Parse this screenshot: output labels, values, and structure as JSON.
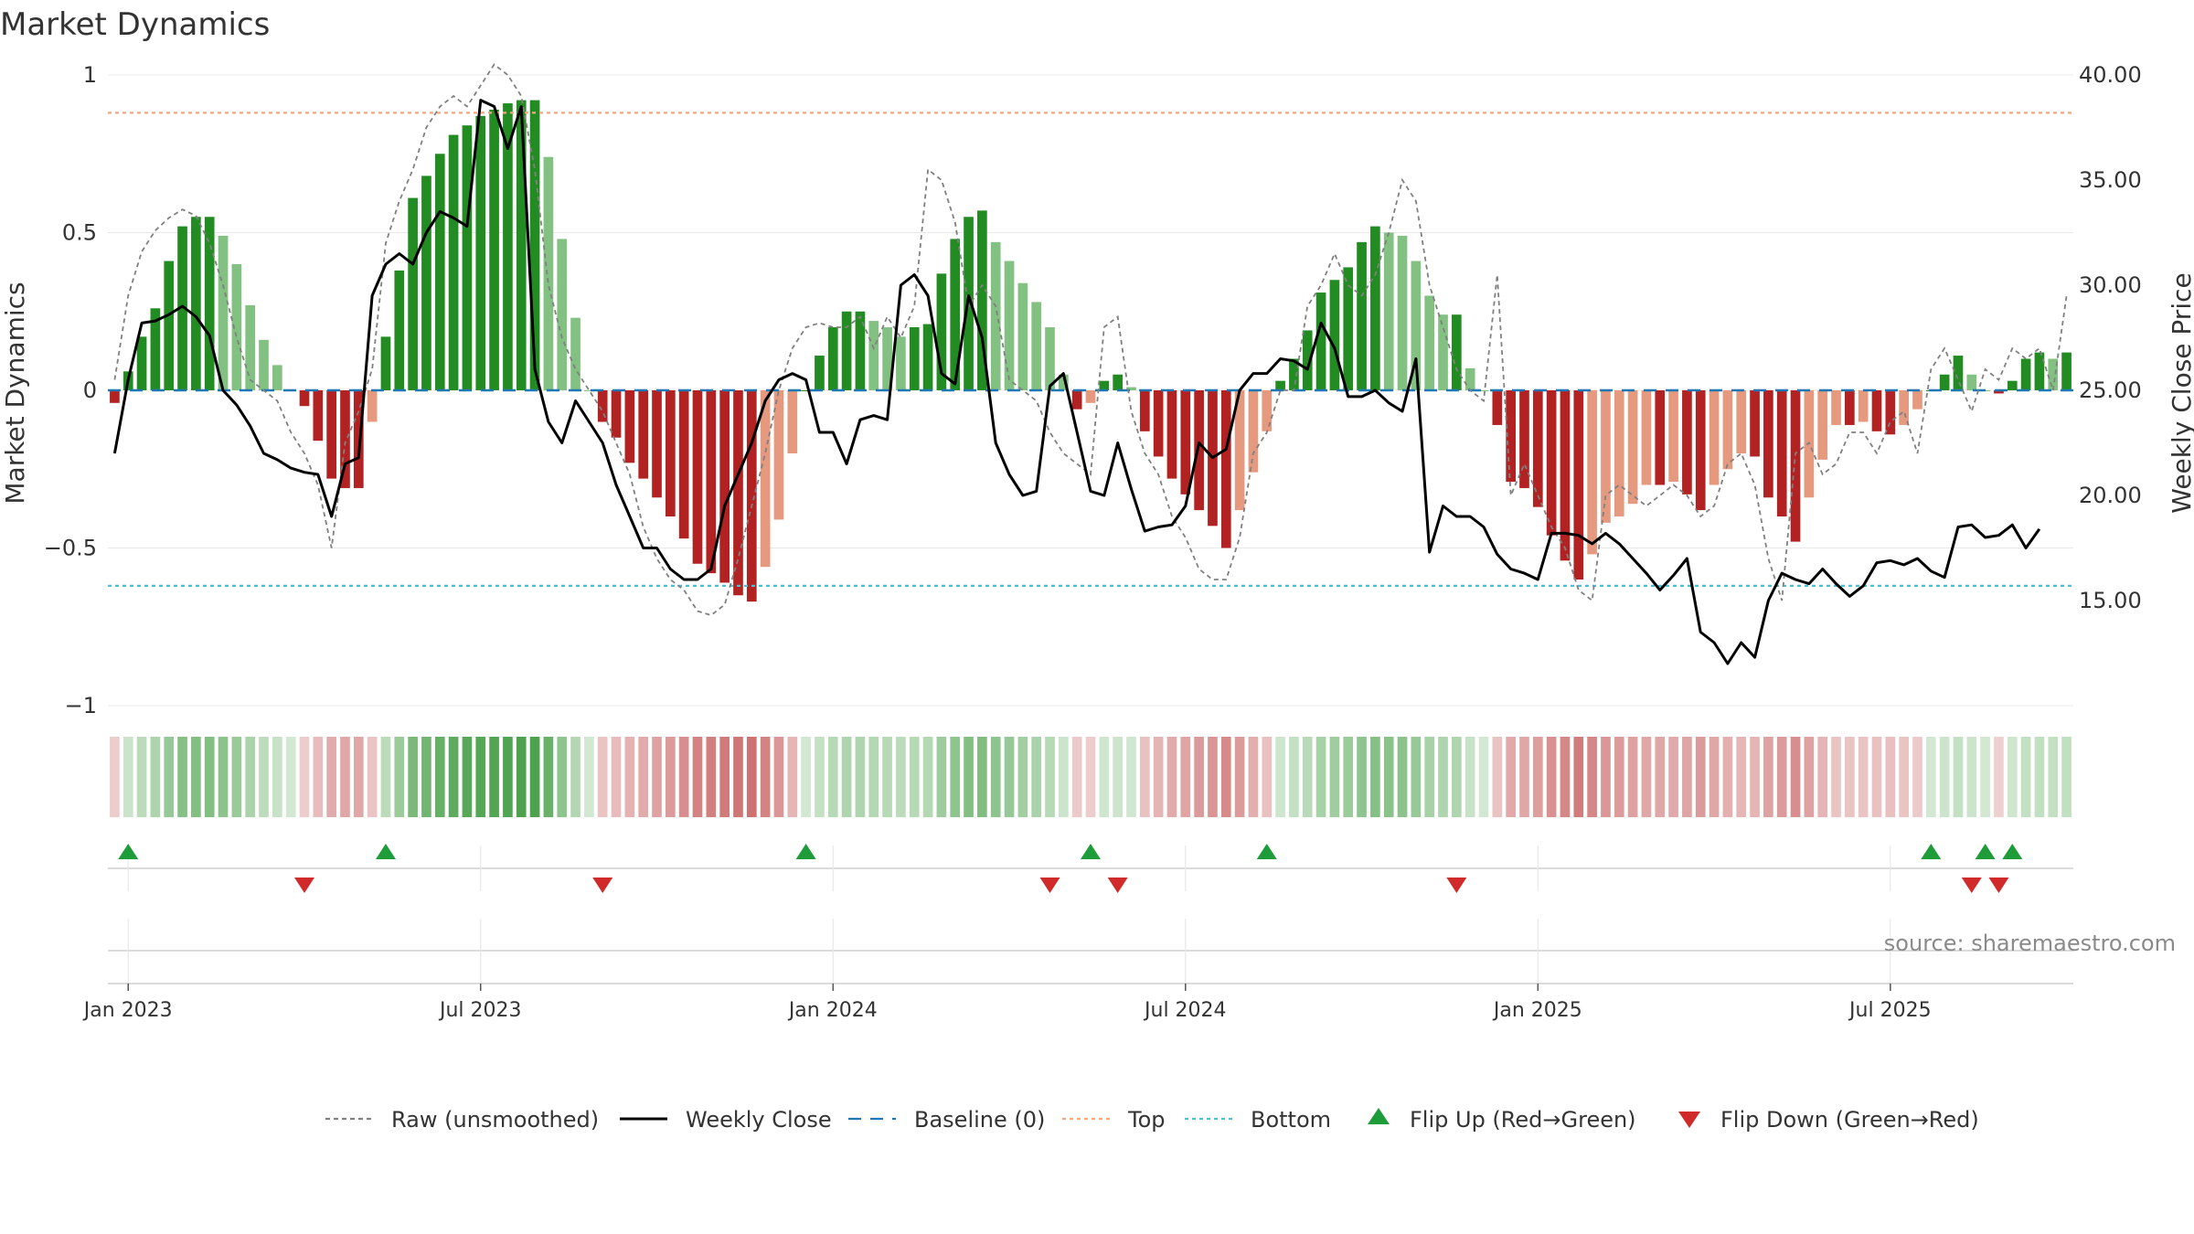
{
  "chart_data": {
    "type": "bar",
    "title": "Market Dynamics",
    "ylabel": "Market Dynamics",
    "ylabel_right": "Weekly Close Price",
    "ylim": [
      -1,
      1
    ],
    "ylim_right": [
      10,
      40
    ],
    "yticks": [
      {
        "v": 1,
        "label": "1"
      },
      {
        "v": 0.5,
        "label": "0.5"
      },
      {
        "v": 0,
        "label": "0"
      },
      {
        "v": -0.5,
        "label": "−0.5"
      },
      {
        "v": -1,
        "label": "−1"
      }
    ],
    "yticks_right": [
      "40.00",
      "35.00",
      "30.00",
      "25.00",
      "20.00",
      "15.00"
    ],
    "xticks": [
      {
        "label": "Jan 2023",
        "week": 1
      },
      {
        "label": "Jul 2023",
        "week": 27
      },
      {
        "label": "Jan 2024",
        "week": 53
      },
      {
        "label": "Jul 2024",
        "week": 79
      },
      {
        "label": "Jan 2025",
        "week": 105
      },
      {
        "label": "Jul 2025",
        "week": 131
      }
    ],
    "start_week_label": "2022-12-26",
    "top_level": 0.88,
    "bottom_level": -0.62,
    "baseline": 0,
    "values": [
      -0.04,
      0.06,
      0.17,
      0.26,
      0.41,
      0.52,
      0.55,
      0.55,
      0.49,
      0.4,
      0.27,
      0.16,
      0.08,
      0.0,
      -0.05,
      -0.16,
      -0.28,
      -0.31,
      -0.31,
      -0.1,
      0.17,
      0.38,
      0.61,
      0.68,
      0.75,
      0.81,
      0.84,
      0.87,
      0.89,
      0.91,
      0.92,
      0.92,
      0.74,
      0.48,
      0.23,
      0.0,
      -0.1,
      -0.15,
      -0.23,
      -0.28,
      -0.34,
      -0.4,
      -0.47,
      -0.55,
      -0.58,
      -0.61,
      -0.65,
      -0.67,
      -0.56,
      -0.41,
      -0.2,
      0.0,
      0.11,
      0.2,
      0.25,
      0.25,
      0.22,
      0.2,
      0.17,
      0.2,
      0.21,
      0.37,
      0.48,
      0.55,
      0.57,
      0.47,
      0.41,
      0.34,
      0.28,
      0.2,
      0.05,
      -0.06,
      -0.04,
      0.03,
      0.05,
      0.01,
      -0.13,
      -0.21,
      -0.28,
      -0.33,
      -0.38,
      -0.43,
      -0.5,
      -0.38,
      -0.26,
      -0.13,
      0.03,
      0.1,
      0.19,
      0.31,
      0.35,
      0.39,
      0.47,
      0.52,
      0.5,
      0.49,
      0.41,
      0.3,
      0.24,
      0.24,
      0.07,
      0.0,
      -0.11,
      -0.29,
      -0.31,
      -0.37,
      -0.46,
      -0.54,
      -0.6,
      -0.52,
      -0.42,
      -0.4,
      -0.36,
      -0.3,
      -0.3,
      -0.29,
      -0.33,
      -0.38,
      -0.3,
      -0.25,
      -0.2,
      -0.21,
      -0.34,
      -0.4,
      -0.48,
      -0.34,
      -0.22,
      -0.11,
      -0.11,
      -0.1,
      -0.13,
      -0.14,
      -0.11,
      -0.06,
      0.0,
      0.05,
      0.11,
      0.05,
      0.0,
      -0.01,
      0.03,
      0.1,
      0.12,
      0.1,
      0.12
    ],
    "series": [
      {
        "name": "Raw (unsmoothed)",
        "values": [
          25.5,
          29.5,
          31.6,
          32.6,
          33.2,
          33.6,
          33.3,
          32.0,
          30.0,
          27.5,
          25.5,
          25.0,
          24.5,
          23.0,
          22.0,
          20.5,
          17.5,
          22.5,
          24.0,
          26.0,
          32.0,
          34.0,
          35.5,
          37.5,
          38.5,
          39.0,
          38.5,
          39.5,
          40.5,
          40.0,
          39.0,
          35.5,
          30.0,
          27.5,
          26.0,
          25.0,
          24.0,
          22.5,
          21.0,
          18.5,
          17.0,
          16.0,
          15.5,
          14.5,
          14.3,
          14.8,
          17.0,
          19.5,
          22.0,
          25.0,
          27.0,
          28.0,
          28.2,
          28.0,
          28.0,
          28.5,
          27.0,
          28.5,
          27.5,
          29.0,
          35.5,
          35.0,
          33.0,
          29.0,
          30.0,
          29.0,
          25.5,
          25.0,
          24.5,
          23.0,
          22.0,
          21.5,
          21.0,
          28.0,
          28.5,
          24.0,
          22.0,
          21.0,
          19.0,
          18.0,
          16.5,
          16.0,
          16.0,
          18.0,
          22.0,
          23.0,
          25.0,
          25.0,
          29.0,
          30.0,
          31.5,
          30.0,
          29.5,
          30.5,
          32.5,
          35.0,
          34.0,
          30.0,
          28.0,
          26.0,
          25.0,
          24.5,
          30.5,
          20.0,
          21.5,
          20.0,
          18.5,
          17.5,
          15.5,
          15.0,
          20.0,
          20.5,
          20.0,
          19.5,
          20.0,
          20.5,
          20.0,
          19.0,
          19.5,
          21.5,
          22.0,
          20.5,
          17.0,
          15.0,
          22.0,
          22.5,
          21.0,
          21.5,
          23.0,
          23.0,
          22.0,
          23.5,
          24.0,
          22.0,
          26.0,
          27.0,
          25.5,
          24.0,
          26.0,
          25.5,
          27.0,
          26.5,
          27.0,
          25.0,
          29.5
        ]
      },
      {
        "name": "Weekly Close",
        "values": [
          22.0,
          25.5,
          28.2,
          28.3,
          28.6,
          29.0,
          28.5,
          27.6,
          25.0,
          24.3,
          23.3,
          22.0,
          21.7,
          21.3,
          21.1,
          21.0,
          19.0,
          21.5,
          21.8,
          29.5,
          31.0,
          31.5,
          31.0,
          32.5,
          33.5,
          33.2,
          32.8,
          38.8,
          38.5,
          36.5,
          38.5,
          26.0,
          23.5,
          22.5,
          24.5,
          23.5,
          22.5,
          20.5,
          19.0,
          17.5,
          17.5,
          16.5,
          16.0,
          16.0,
          16.5,
          19.5,
          21.0,
          22.5,
          24.5,
          25.5,
          25.8,
          25.5,
          23.0,
          23.0,
          21.5,
          23.6,
          23.8,
          23.6,
          30.0,
          30.5,
          29.5,
          25.8,
          25.3,
          29.5,
          27.5,
          22.5,
          21.0,
          20.0,
          20.2,
          25.2,
          25.8,
          23.0,
          20.2,
          20.0,
          22.5,
          20.3,
          18.3,
          18.5,
          18.6,
          19.5,
          22.5,
          21.8,
          22.2,
          25.0,
          25.8,
          25.8,
          26.5,
          26.4,
          26.0,
          28.2,
          27.0,
          24.7,
          24.7,
          25.0,
          24.4,
          24.0,
          26.5,
          17.3,
          19.5,
          19.0,
          19.0,
          18.5,
          17.2,
          16.5,
          16.3,
          16.0,
          18.2,
          18.2,
          18.1,
          17.7,
          18.2,
          17.7,
          17.0,
          16.3,
          15.5,
          16.2,
          17.0,
          13.5,
          13.0,
          12.0,
          13.0,
          12.3,
          15.0,
          16.3,
          16.0,
          15.8,
          16.5,
          15.8,
          15.2,
          15.7,
          16.8,
          16.9,
          16.7,
          17.0,
          16.4,
          16.1,
          18.5,
          18.6,
          18.0,
          18.1,
          18.6,
          17.5,
          18.4
        ]
      }
    ],
    "flip_up_weeks": [
      1,
      20,
      51,
      72,
      85,
      134,
      138,
      140
    ],
    "flip_down_weeks": [
      14,
      36,
      69,
      74,
      99,
      137,
      139
    ],
    "colors": {
      "green_strong": "#228b22",
      "green_light": "#82c182",
      "red_strong": "#b22222",
      "red_light": "#e59a7f",
      "close_line": "#000000",
      "raw_line": "#808080",
      "baseline": "#1f77b4",
      "top": "#f4a582",
      "bottom": "#4dc0d0",
      "flip_up": "#1f9c3a",
      "flip_down": "#d12a2a",
      "grid": "#e8e8e8"
    },
    "legend": [
      {
        "label": "Raw (unsmoothed)",
        "kind": "dashed-line",
        "color": "#808080"
      },
      {
        "label": "Weekly Close",
        "kind": "line",
        "color": "#000000"
      },
      {
        "label": "Baseline (0)",
        "kind": "dashed-line",
        "color": "#1f77b4"
      },
      {
        "label": "Top",
        "kind": "dotted-line",
        "color": "#f4a582"
      },
      {
        "label": "Bottom",
        "kind": "dotted-line",
        "color": "#4dc0d0"
      },
      {
        "label": "Flip Up (Red→Green)",
        "kind": "triangle-up",
        "color": "#1f9c3a"
      },
      {
        "label": "Flip Down (Green→Red)",
        "kind": "triangle-down",
        "color": "#d12a2a"
      }
    ],
    "legend_position": "bottom-center",
    "source": "source: sharemaestro.com"
  }
}
